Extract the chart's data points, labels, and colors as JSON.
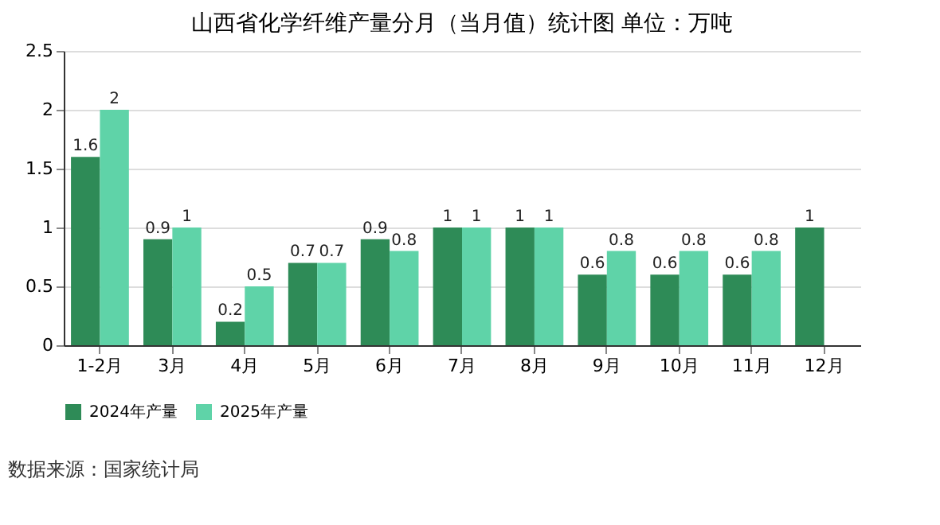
{
  "chart_data": {
    "type": "bar",
    "title": "山西省化学纤维产量分月（当月值）统计图 单位：万吨",
    "categories": [
      "1-2月",
      "3月",
      "4月",
      "5月",
      "6月",
      "7月",
      "8月",
      "9月",
      "10月",
      "11月",
      "12月"
    ],
    "series": [
      {
        "name": "2024年产量",
        "color": "#2e8b57",
        "values": [
          1.6,
          0.9,
          0.2,
          0.7,
          0.9,
          1,
          1,
          0.6,
          0.6,
          0.6,
          1
        ]
      },
      {
        "name": "2025年产量",
        "color": "#5fd3a8",
        "values": [
          2,
          1,
          0.5,
          0.7,
          0.8,
          1,
          1,
          0.8,
          0.8,
          0.8,
          null
        ]
      }
    ],
    "ylim": [
      0,
      2.5
    ],
    "yticks": [
      0,
      0.5,
      1,
      1.5,
      2,
      2.5
    ],
    "grid": "y",
    "legend": "bottom",
    "data_labels": true,
    "annotations": [
      "数据来源：国家统计局"
    ]
  }
}
